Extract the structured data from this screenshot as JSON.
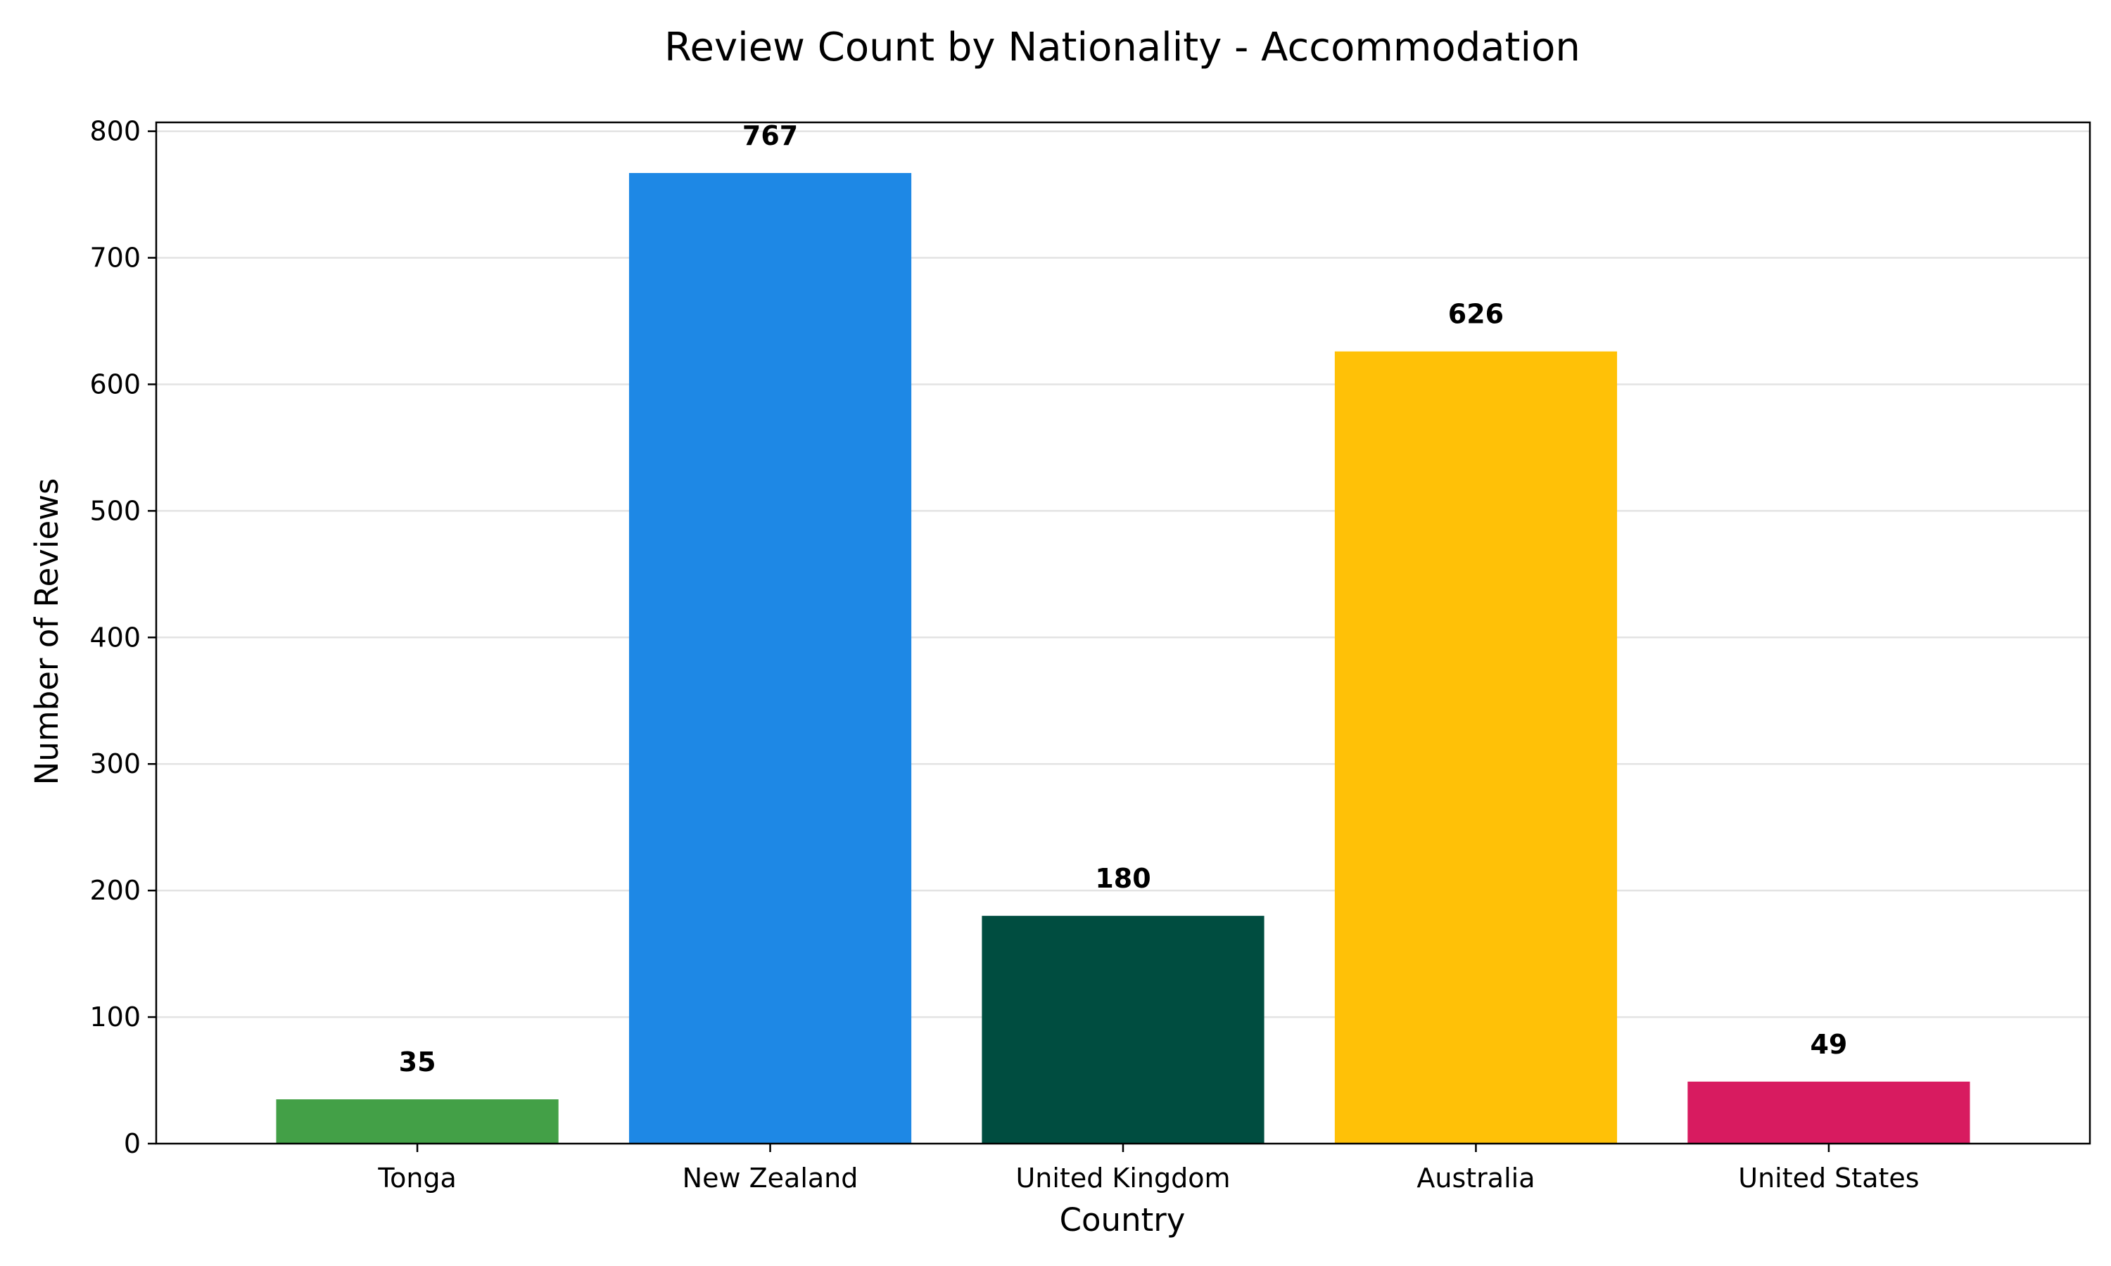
{
  "chart_data": {
    "type": "bar",
    "title": "Review Count by Nationality - Accommodation",
    "xlabel": "Country",
    "ylabel": "Number of Reviews",
    "categories": [
      "Tonga",
      "New Zealand",
      "United Kingdom",
      "Australia",
      "United States"
    ],
    "values": [
      35,
      767,
      180,
      626,
      49
    ],
    "colors": [
      "#43a047",
      "#1e88e5",
      "#004d40",
      "#ffc107",
      "#d81b60"
    ],
    "ylim": [
      0,
      807
    ],
    "yticks": [
      0,
      100,
      200,
      300,
      400,
      500,
      600,
      700,
      800
    ],
    "grid": "horizontal",
    "data_labels": true
  }
}
